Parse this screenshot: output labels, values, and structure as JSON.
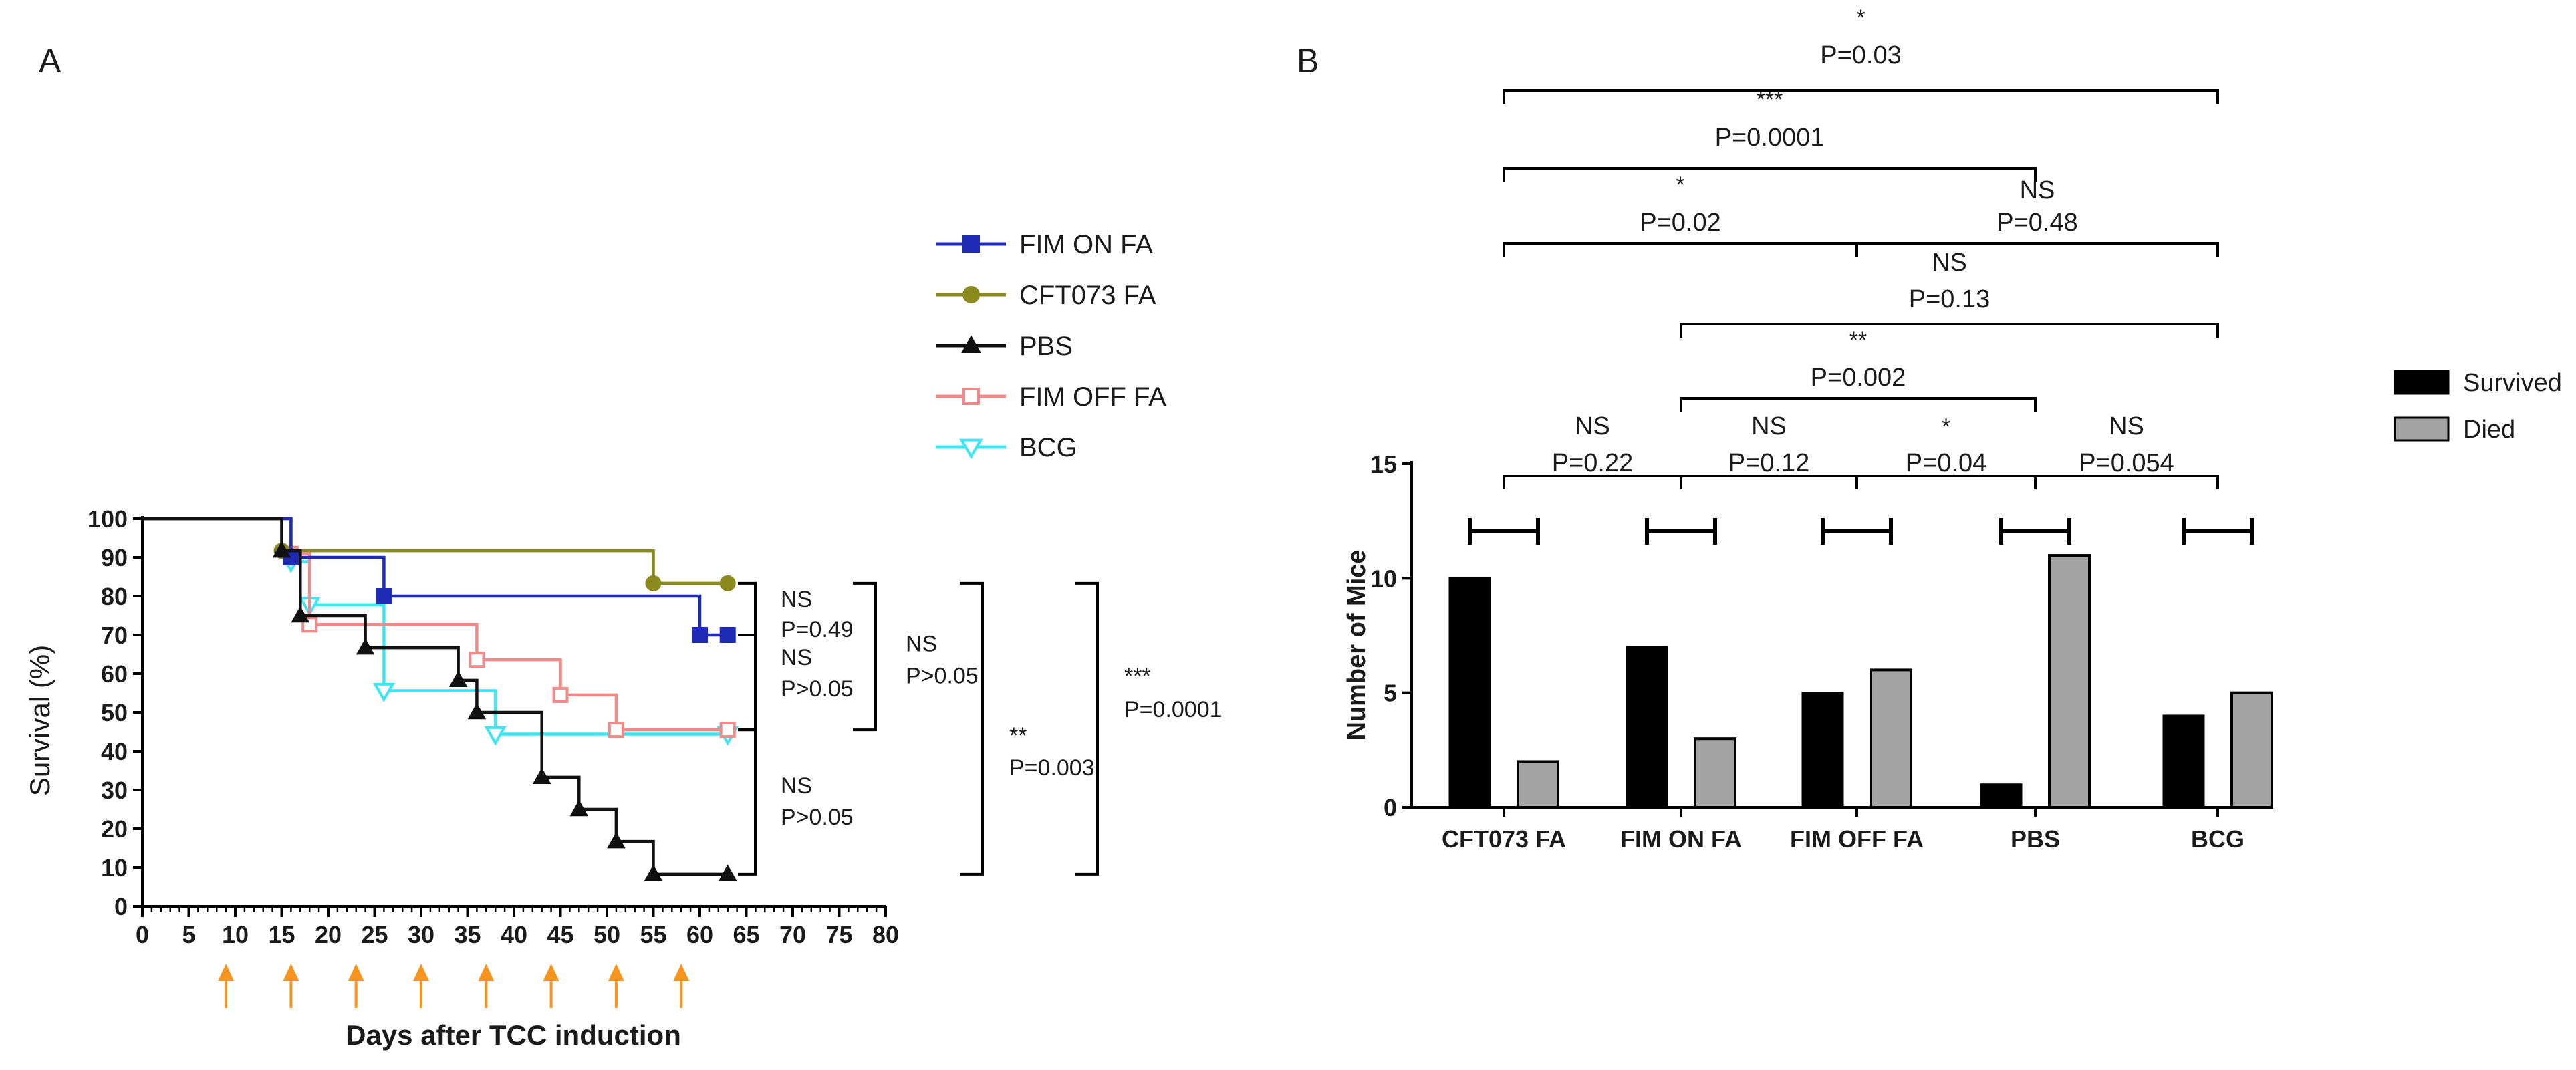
{
  "panels": {
    "a_label": "A",
    "b_label": "B"
  },
  "colors": {
    "fim_on": "#1f2bb5",
    "cft073": "#8b8a1c",
    "pbs": "#111111",
    "fim_off": "#ef8a8a",
    "bcg": "#3ee6f2",
    "arrow": "#f7941d",
    "survived": "#000000",
    "died": "#a3a3a3"
  },
  "chart_data": [
    {
      "type": "line",
      "subtype": "kaplan-meier",
      "xlabel": "Days after TCC induction",
      "ylabel": "Survival (%)",
      "xlim": [
        0,
        80
      ],
      "ylim": [
        0,
        100
      ],
      "xticks": [
        0,
        5,
        10,
        15,
        20,
        25,
        30,
        35,
        40,
        45,
        50,
        55,
        60,
        65,
        70,
        75,
        80
      ],
      "yticks": [
        0,
        10,
        20,
        30,
        40,
        50,
        60,
        70,
        80,
        90,
        100
      ],
      "treatment_days": [
        9,
        16,
        23,
        30,
        37,
        44,
        51,
        58
      ],
      "legend_position": "right",
      "series": [
        {
          "key": "fim_on",
          "name": "FIM ON FA",
          "marker": "square",
          "steps": [
            [
              0,
              100
            ],
            [
              16,
              100
            ],
            [
              16,
              90
            ],
            [
              26,
              90
            ],
            [
              26,
              80
            ],
            [
              60,
              80
            ],
            [
              60,
              70
            ],
            [
              63,
              70
            ]
          ],
          "markers": [
            [
              16,
              90
            ],
            [
              26,
              80
            ],
            [
              60,
              70
            ],
            [
              63,
              70
            ]
          ]
        },
        {
          "key": "cft073",
          "name": "CFT073 FA",
          "marker": "circle",
          "steps": [
            [
              0,
              100
            ],
            [
              15,
              100
            ],
            [
              15,
              91.7
            ],
            [
              55,
              91.7
            ],
            [
              55,
              83.3
            ],
            [
              63,
              83.3
            ]
          ],
          "markers": [
            [
              15,
              91.7
            ],
            [
              55,
              83.3
            ],
            [
              63,
              83.3
            ]
          ]
        },
        {
          "key": "pbs",
          "name": "PBS",
          "marker": "triangle",
          "steps": [
            [
              0,
              100
            ],
            [
              15,
              100
            ],
            [
              15,
              91.7
            ],
            [
              17,
              91.7
            ],
            [
              17,
              75
            ],
            [
              24,
              75
            ],
            [
              24,
              66.7
            ],
            [
              34,
              66.7
            ],
            [
              34,
              58.3
            ],
            [
              36,
              58.3
            ],
            [
              36,
              50
            ],
            [
              43,
              50
            ],
            [
              43,
              33.3
            ],
            [
              47,
              33.3
            ],
            [
              47,
              25
            ],
            [
              51,
              25
            ],
            [
              51,
              16.7
            ],
            [
              55,
              16.7
            ],
            [
              55,
              8.3
            ],
            [
              63,
              8.3
            ]
          ],
          "markers": [
            [
              15,
              91.7
            ],
            [
              17,
              75
            ],
            [
              24,
              66.7
            ],
            [
              34,
              58.3
            ],
            [
              36,
              50
            ],
            [
              43,
              33.3
            ],
            [
              47,
              25
            ],
            [
              51,
              16.7
            ],
            [
              55,
              8.3
            ],
            [
              63,
              8.3
            ]
          ]
        },
        {
          "key": "fim_off",
          "name": "FIM OFF FA",
          "marker": "open-square",
          "steps": [
            [
              0,
              100
            ],
            [
              16,
              100
            ],
            [
              16,
              90.9
            ],
            [
              18,
              90.9
            ],
            [
              18,
              72.7
            ],
            [
              36,
              72.7
            ],
            [
              36,
              63.6
            ],
            [
              45,
              63.6
            ],
            [
              45,
              54.5
            ],
            [
              51,
              54.5
            ],
            [
              51,
              45.5
            ],
            [
              63,
              45.5
            ]
          ],
          "markers": [
            [
              16,
              90.9
            ],
            [
              18,
              72.7
            ],
            [
              36,
              63.6
            ],
            [
              45,
              54.5
            ],
            [
              51,
              45.5
            ],
            [
              63,
              45.5
            ]
          ]
        },
        {
          "key": "bcg",
          "name": "BCG",
          "marker": "open-triangle-down",
          "steps": [
            [
              0,
              100
            ],
            [
              16,
              100
            ],
            [
              16,
              88.9
            ],
            [
              18,
              88.9
            ],
            [
              18,
              77.8
            ],
            [
              26,
              77.8
            ],
            [
              26,
              55.6
            ],
            [
              38,
              55.6
            ],
            [
              38,
              44.4
            ],
            [
              63,
              44.4
            ]
          ],
          "markers": [
            [
              16,
              88.9
            ],
            [
              18,
              77.8
            ],
            [
              26,
              55.6
            ],
            [
              38,
              44.4
            ],
            [
              63,
              44.4
            ]
          ]
        }
      ],
      "annotations": [
        {
          "stars": "NS",
          "p": "P=0.49"
        },
        {
          "stars": "NS",
          "p": "P>0.05"
        },
        {
          "stars": "NS",
          "p": "P>0.05"
        },
        {
          "stars": "NS",
          "p": "P>0.05"
        },
        {
          "stars": "**",
          "p": "P=0.003"
        },
        {
          "stars": "***",
          "p": "P=0.0001"
        }
      ]
    },
    {
      "type": "bar",
      "ylabel": "Number of Mice",
      "ylim": [
        0,
        15
      ],
      "yticks": [
        0,
        5,
        10,
        15
      ],
      "categories": [
        "CFT073 FA",
        "FIM ON FA",
        "FIM OFF FA",
        "PBS",
        "BCG"
      ],
      "series": [
        {
          "name": "Survived",
          "values": [
            10,
            7,
            5,
            1,
            4
          ]
        },
        {
          "name": "Died",
          "values": [
            2,
            3,
            6,
            11,
            5
          ]
        }
      ],
      "legend_position": "right",
      "comparisons": [
        {
          "from": 0,
          "to": 4,
          "stars": "*",
          "p": "P=0.03"
        },
        {
          "from": 0,
          "to": 3,
          "stars": "***",
          "p": "P=0.0001"
        },
        {
          "from": 0,
          "to": 2,
          "stars": "*",
          "p": "P=0.02"
        },
        {
          "from": 2,
          "to": 4,
          "stars": "NS",
          "p": "P=0.48"
        },
        {
          "from": 1,
          "to": 4,
          "stars": "NS",
          "p": "P=0.13"
        },
        {
          "from": 1,
          "to": 3,
          "stars": "**",
          "p": "P=0.002"
        },
        {
          "from": 0,
          "to": 1,
          "stars": "NS",
          "p": "P=0.22"
        },
        {
          "from": 1,
          "to": 2,
          "stars": "NS",
          "p": "P=0.12"
        },
        {
          "from": 2,
          "to": 3,
          "stars": "*",
          "p": "P=0.04"
        },
        {
          "from": 3,
          "to": 4,
          "stars": "NS",
          "p": "P=0.054"
        }
      ]
    }
  ]
}
